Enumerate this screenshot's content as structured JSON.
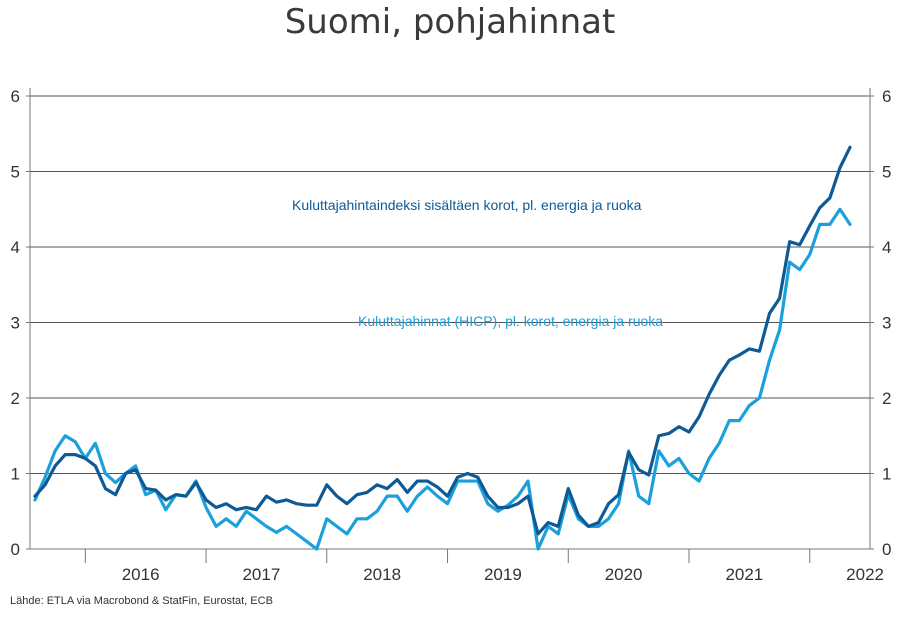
{
  "chart_data": {
    "type": "line",
    "title": "Suomi, pohjahinnat",
    "source": "Lähde: ETLA via Macrobond & StatFin, Eurostat, ECB",
    "ylim": [
      0,
      6
    ],
    "yticks": [
      "0",
      "1",
      "2",
      "3",
      "4",
      "5",
      "6"
    ],
    "xticks": [
      "2016",
      "2017",
      "2018",
      "2019",
      "2020",
      "2021",
      "2022"
    ],
    "x_start": "2015-08",
    "x_unit": "monthly",
    "grid": true,
    "series": [
      {
        "name": "Kuluttajahintaindeksi sisältäen korot, pl. energia ja ruoka",
        "color": "#0e5a96",
        "values": [
          0.7,
          0.85,
          1.1,
          1.25,
          1.25,
          1.2,
          1.1,
          0.8,
          0.72,
          1.0,
          1.05,
          0.8,
          0.78,
          0.65,
          0.72,
          0.7,
          0.88,
          0.65,
          0.55,
          0.6,
          0.52,
          0.55,
          0.52,
          0.7,
          0.62,
          0.65,
          0.6,
          0.58,
          0.58,
          0.85,
          0.7,
          0.6,
          0.72,
          0.75,
          0.85,
          0.8,
          0.92,
          0.75,
          0.9,
          0.9,
          0.82,
          0.7,
          0.95,
          1.0,
          0.95,
          0.7,
          0.55,
          0.55,
          0.6,
          0.7,
          0.2,
          0.35,
          0.3,
          0.8,
          0.45,
          0.3,
          0.35,
          0.6,
          0.72,
          1.28,
          1.05,
          0.98,
          1.5,
          1.53,
          1.62,
          1.55,
          1.75,
          2.05,
          2.3,
          2.5,
          2.57,
          2.65,
          2.62,
          3.12,
          3.32,
          4.07,
          4.03,
          4.28,
          4.52,
          4.65,
          5.05,
          5.32
        ],
        "label_text": "Kuluttajahintaindeksi sisältäen korot, pl. energia ja ruoka"
      },
      {
        "name": "Kuluttajahinnat (HICP), pl. korot, energia ja ruoka",
        "color": "#1aa0dc",
        "values": [
          0.65,
          0.95,
          1.3,
          1.5,
          1.42,
          1.2,
          1.4,
          1.0,
          0.88,
          1.0,
          1.1,
          0.72,
          0.78,
          0.52,
          0.72,
          0.7,
          0.9,
          0.55,
          0.3,
          0.4,
          0.3,
          0.5,
          0.4,
          0.3,
          0.22,
          0.3,
          0.2,
          0.1,
          0.0,
          0.4,
          0.3,
          0.2,
          0.4,
          0.4,
          0.5,
          0.7,
          0.7,
          0.5,
          0.7,
          0.82,
          0.7,
          0.6,
          0.9,
          0.9,
          0.9,
          0.6,
          0.5,
          0.58,
          0.7,
          0.9,
          0.0,
          0.3,
          0.2,
          0.72,
          0.4,
          0.3,
          0.3,
          0.4,
          0.6,
          1.3,
          0.7,
          0.6,
          1.3,
          1.1,
          1.2,
          1.0,
          0.9,
          1.2,
          1.4,
          1.7,
          1.7,
          1.9,
          2.0,
          2.5,
          2.9,
          3.8,
          3.7,
          3.9,
          4.3,
          4.3,
          4.5,
          4.3
        ],
        "label_text": "Kuluttajahinnat (HICP), pl. korot, energia ja ruoka"
      }
    ]
  }
}
